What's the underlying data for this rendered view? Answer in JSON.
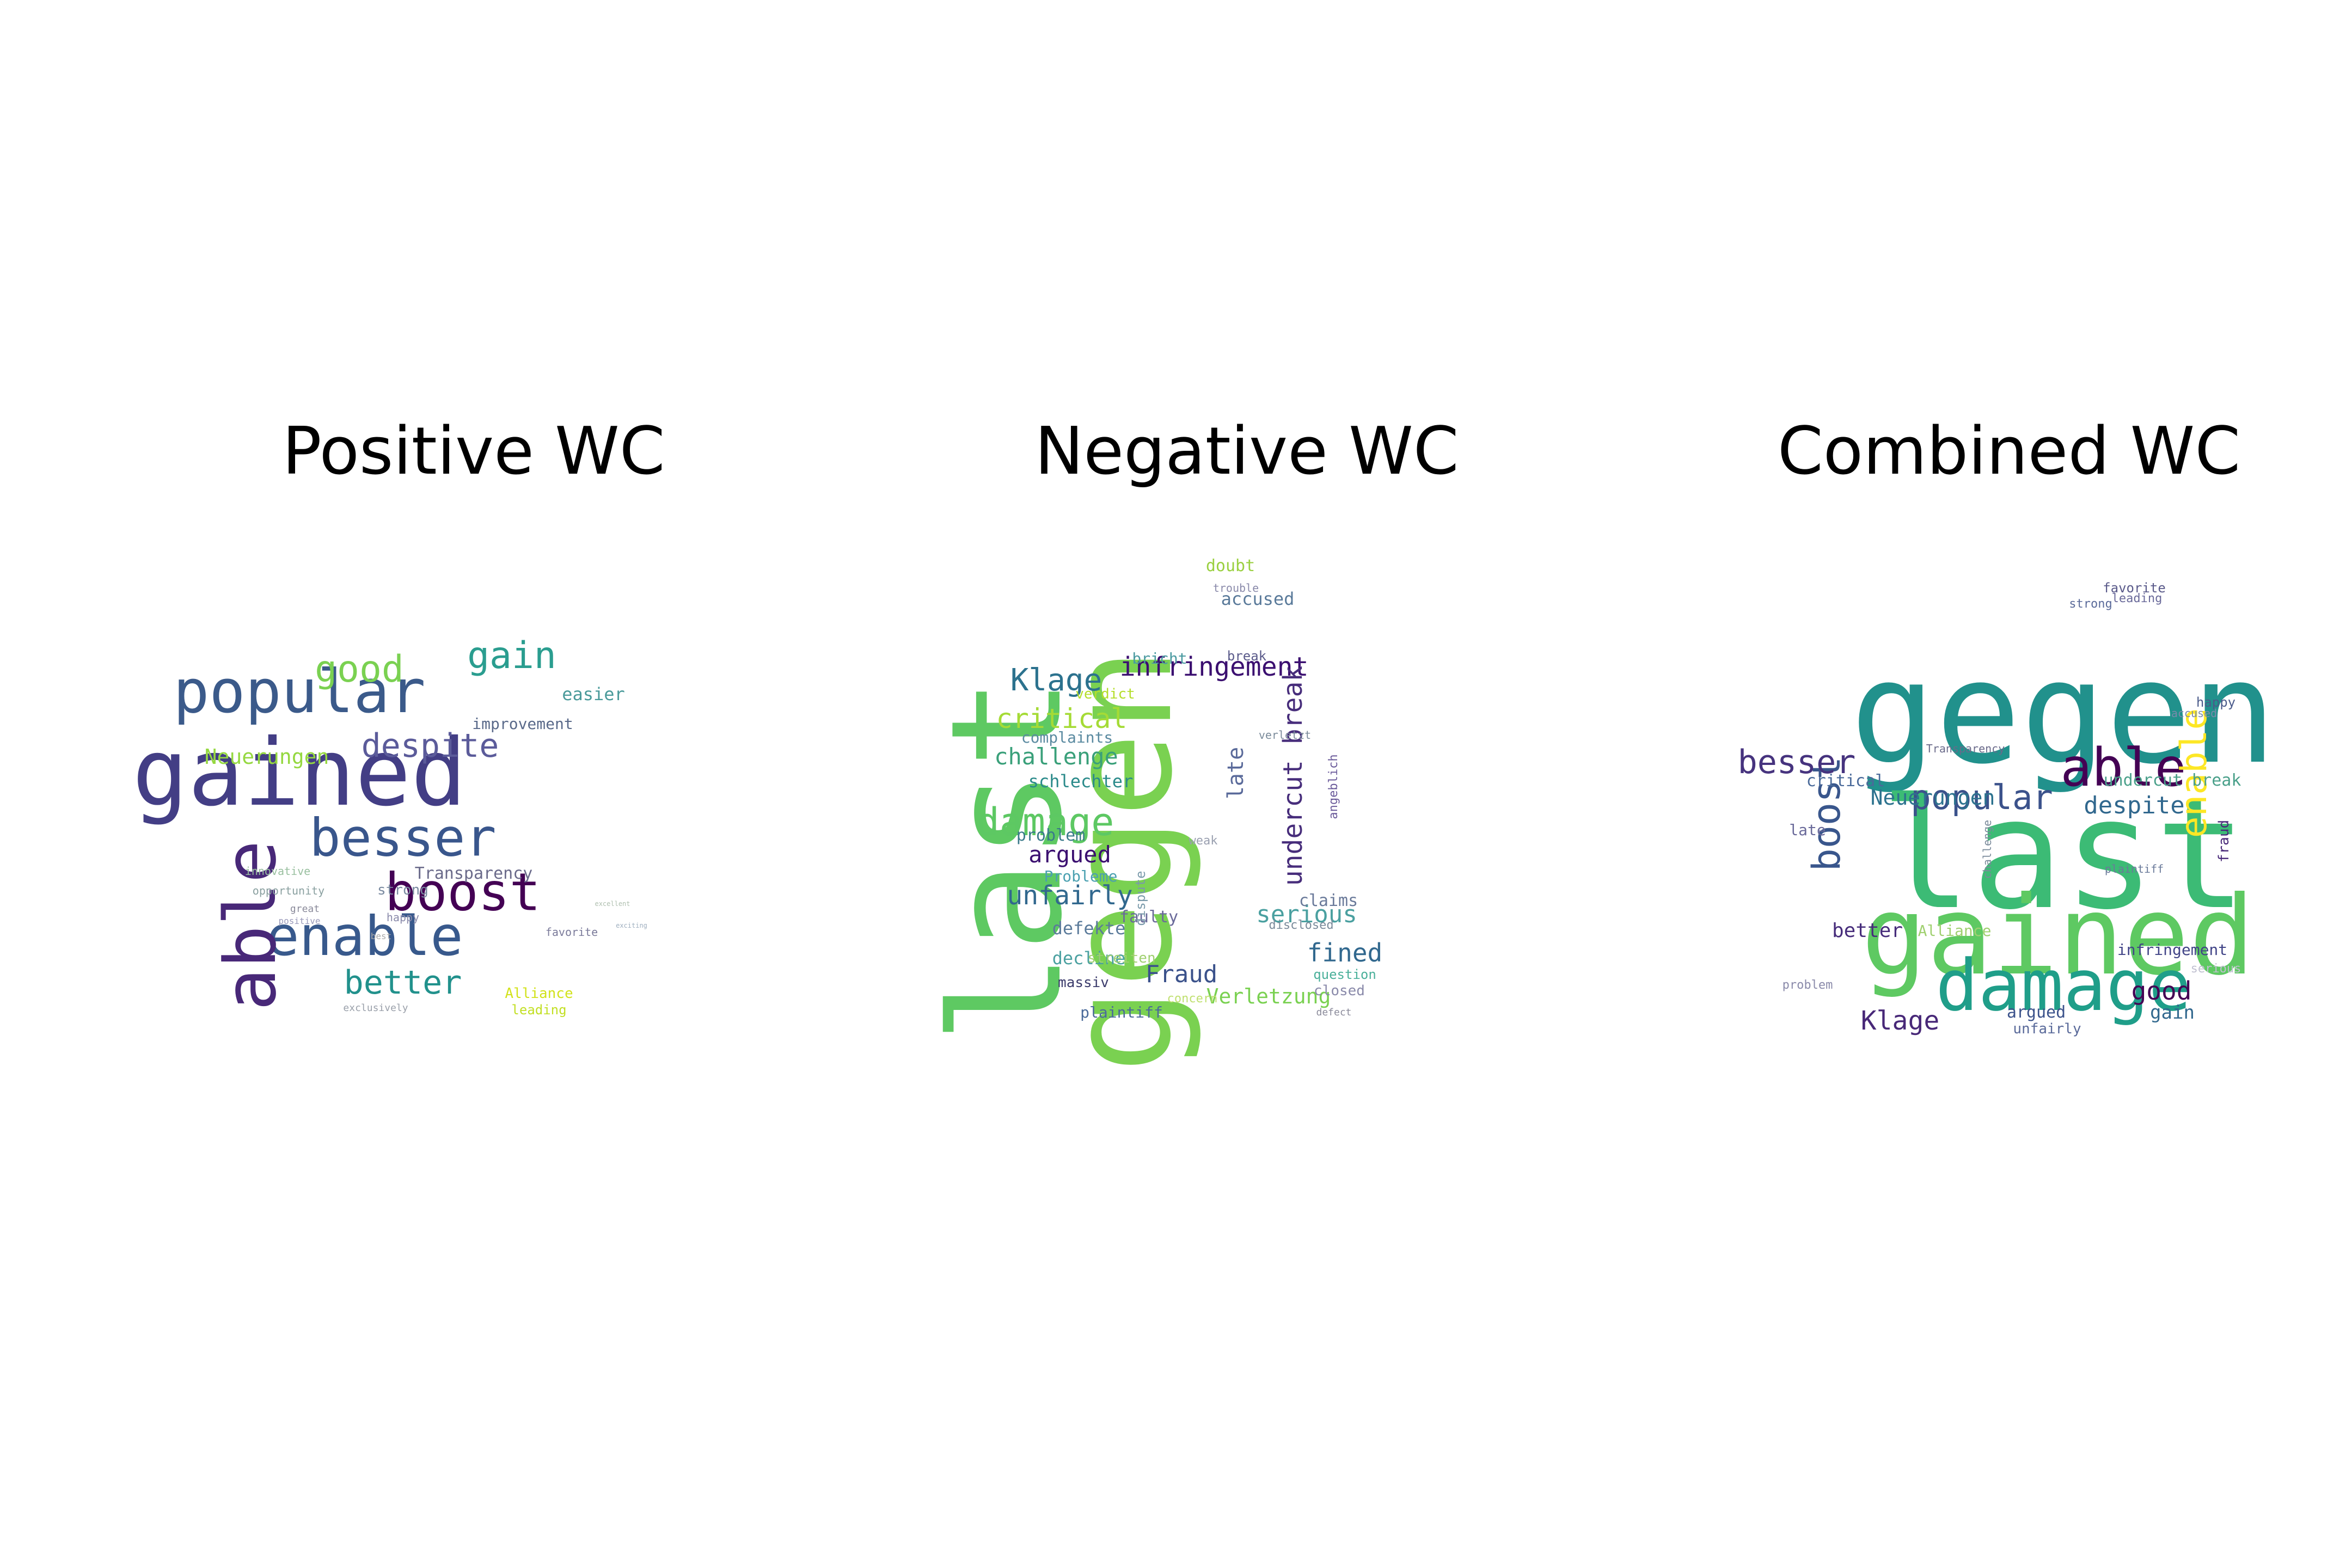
{
  "panels": [
    {
      "title": "Positive WC",
      "words": [
        {
          "text": "gained",
          "color": "#433e85"
        },
        {
          "text": "popular",
          "color": "#3b5a8a"
        },
        {
          "text": "besser",
          "color": "#39568c"
        },
        {
          "text": "boost",
          "color": "#440154"
        },
        {
          "text": "enable",
          "color": "#38598c"
        },
        {
          "text": "able",
          "color": "#482878"
        },
        {
          "text": "good",
          "color": "#7ad151"
        },
        {
          "text": "gain",
          "color": "#2a9d8f"
        },
        {
          "text": "despite",
          "color": "#5b5b9a"
        },
        {
          "text": "better",
          "color": "#21918c"
        },
        {
          "text": "Neuerungen",
          "color": "#95d840"
        },
        {
          "text": "easier",
          "color": "#4a9a9a"
        },
        {
          "text": "improvement",
          "color": "#5a6a8a"
        },
        {
          "text": "Transparency",
          "color": "#6a6a8a"
        },
        {
          "text": "strong",
          "color": "#7a8aa0"
        },
        {
          "text": "Alliance",
          "color": "#d2e21b"
        },
        {
          "text": "leading",
          "color": "#c2df23"
        },
        {
          "text": "favorite",
          "color": "#7a7a9a"
        },
        {
          "text": "happy",
          "color": "#8a8aaa"
        },
        {
          "text": "innovative",
          "color": "#9ac0a0"
        },
        {
          "text": "opportunity",
          "color": "#8aa0a0"
        },
        {
          "text": "great",
          "color": "#8a8a9a"
        },
        {
          "text": "positive",
          "color": "#9a9aba"
        },
        {
          "text": "best",
          "color": "#aaaaaa"
        },
        {
          "text": "exclusively",
          "color": "#9aa0aa"
        },
        {
          "text": "excellent",
          "color": "#b0c0b0"
        },
        {
          "text": "exciting",
          "color": "#a0b0c0"
        }
      ]
    },
    {
      "title": "Negative WC",
      "words": [
        {
          "text": "last",
          "color": "#5ec962"
        },
        {
          "text": "gegen",
          "color": "#7ad151"
        },
        {
          "text": "damage",
          "color": "#5dc863"
        },
        {
          "text": "infringement",
          "color": "#3b0f70"
        },
        {
          "text": "Klage",
          "color": "#2c728e"
        },
        {
          "text": "critical",
          "color": "#a5db36"
        },
        {
          "text": "challenge",
          "color": "#3aa07a"
        },
        {
          "text": "undercut break",
          "color": "#472d7b"
        },
        {
          "text": "late",
          "color": "#5a6a9a"
        },
        {
          "text": "argued",
          "color": "#3b0f70"
        },
        {
          "text": "unfairly",
          "color": "#31688e"
        },
        {
          "text": "serious",
          "color": "#4aa0a0"
        },
        {
          "text": "fined",
          "color": "#31688e"
        },
        {
          "text": "Fraud",
          "color": "#3b528b"
        },
        {
          "text": "Verletzung",
          "color": "#7ad151"
        },
        {
          "text": "schlechter",
          "color": "#2a8a8a"
        },
        {
          "text": "problem",
          "color": "#3a7a8a"
        },
        {
          "text": "complaints",
          "color": "#5a8aa0"
        },
        {
          "text": "bricht",
          "color": "#4a9aa0"
        },
        {
          "text": "verdict",
          "color": "#b5de2b"
        },
        {
          "text": "accused",
          "color": "#5a7a9a"
        },
        {
          "text": "doubt",
          "color": "#9ad040"
        },
        {
          "text": "break",
          "color": "#5a5a8a"
        },
        {
          "text": "angeblich",
          "color": "#6a5a9a"
        },
        {
          "text": "claims",
          "color": "#6a7a9a"
        },
        {
          "text": "disclosed",
          "color": "#7a8a9a"
        },
        {
          "text": "question",
          "color": "#4ab09a"
        },
        {
          "text": "closed",
          "color": "#8a8aaa"
        },
        {
          "text": "Probleme",
          "color": "#4aa0b0"
        },
        {
          "text": "defekte",
          "color": "#5a7a9a"
        },
        {
          "text": "faulty",
          "color": "#6a6a9a"
        },
        {
          "text": "dispute",
          "color": "#7a9aaa"
        },
        {
          "text": "decline",
          "color": "#4aa0a0"
        },
        {
          "text": "streiten",
          "color": "#a0d070"
        },
        {
          "text": "massiv",
          "color": "#3b3b6b"
        },
        {
          "text": "plaintiff",
          "color": "#4a6a9a"
        },
        {
          "text": "concern",
          "color": "#c0e070"
        },
        {
          "text": "trouble",
          "color": "#8a8aaa"
        },
        {
          "text": "weak",
          "color": "#9aa0b0"
        },
        {
          "text": "verletzt",
          "color": "#7a8a9a"
        },
        {
          "text": "defect",
          "color": "#8a8a9a"
        }
      ]
    },
    {
      "title": "Combined WC",
      "words": [
        {
          "text": "gegen",
          "color": "#21918c"
        },
        {
          "text": "last",
          "color": "#3cbb75"
        },
        {
          "text": "gained",
          "color": "#5ec962"
        },
        {
          "text": "damage",
          "color": "#1f9e89"
        },
        {
          "text": "able",
          "color": "#440154"
        },
        {
          "text": "enable",
          "color": "#fde725"
        },
        {
          "text": "boost",
          "color": "#39568c"
        },
        {
          "text": "besser",
          "color": "#46337e"
        },
        {
          "text": "popular",
          "color": "#3b528b"
        },
        {
          "text": "despite",
          "color": "#31688e"
        },
        {
          "text": "Neuerungen",
          "color": "#2c728e"
        },
        {
          "text": "Klage",
          "color": "#482878"
        },
        {
          "text": "good",
          "color": "#440154"
        },
        {
          "text": "gain",
          "color": "#31688e"
        },
        {
          "text": "better",
          "color": "#472d7b"
        },
        {
          "text": "infringement",
          "color": "#414487"
        },
        {
          "text": "unfairly",
          "color": "#5a6a9a"
        },
        {
          "text": "argued",
          "color": "#3b528b"
        },
        {
          "text": "critical",
          "color": "#4a6a9a"
        },
        {
          "text": "undercut break",
          "color": "#4aa08a"
        },
        {
          "text": "fraud",
          "color": "#482878"
        },
        {
          "text": "happy",
          "color": "#4a5a8a"
        },
        {
          "text": "favorite",
          "color": "#5a5a8a"
        },
        {
          "text": "leading",
          "color": "#6a6a9a"
        },
        {
          "text": "strong",
          "color": "#5a6a9a"
        },
        {
          "text": "Alliance",
          "color": "#a0d070"
        },
        {
          "text": "late",
          "color": "#6a6a9a"
        },
        {
          "text": "problem",
          "color": "#8a8aaa"
        },
        {
          "text": "Transparency",
          "color": "#6a6a8a"
        },
        {
          "text": "serious",
          "color": "#c0c0d0"
        },
        {
          "text": "accused",
          "color": "#7a8aaa"
        },
        {
          "text": "plaintiff",
          "color": "#6a7a9a"
        },
        {
          "text": "challenge",
          "color": "#7a8a9a"
        }
      ]
    }
  ]
}
